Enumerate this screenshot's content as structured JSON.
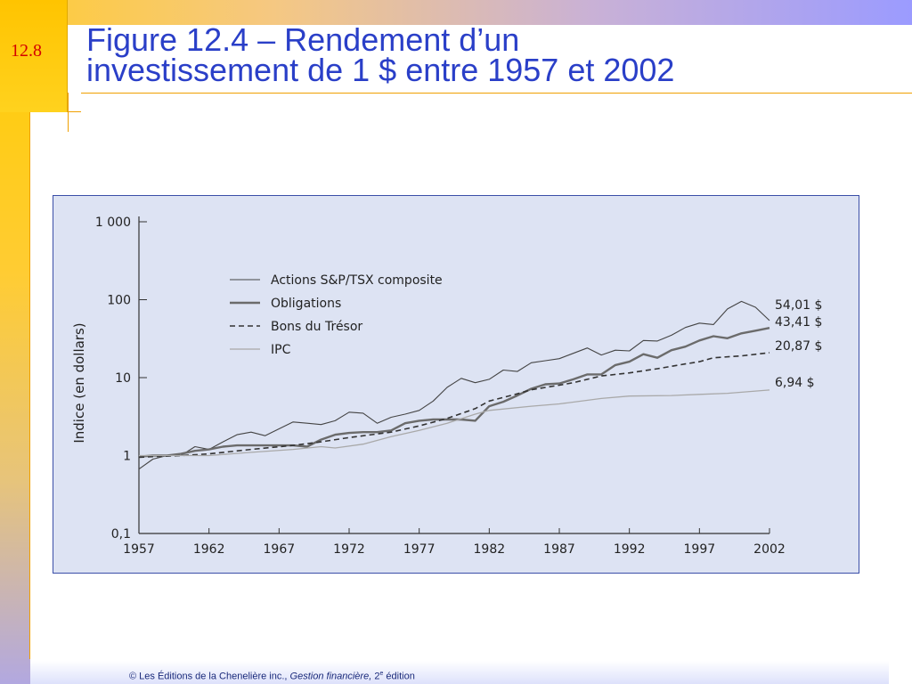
{
  "slide": {
    "number": "12.8",
    "title_line1": "Figure 12.4 – Rendement d’un",
    "title_line2": "investissement de 1 $ entre 1957 et 2002"
  },
  "footer": {
    "prefix": "© Les Éditions de la Chenelière inc., ",
    "book": "Gestion financière,",
    "edition_num": " 2",
    "edition_sup": "e",
    "edition_word": " édition"
  },
  "colors": {
    "title": "#2a3fc8",
    "slide_number": "#d40000",
    "chart_background": "#dde3f3",
    "frame": "#3a4ea8",
    "stocks": "#444444",
    "bonds": "#6b6b6b",
    "tbills": "#333333",
    "cpi": "#a9a9a9"
  },
  "chart_data": {
    "type": "line",
    "title": "",
    "xlabel": "",
    "ylabel": "Indice (en dollars)",
    "yscale": "log",
    "ylim": [
      0.1,
      1000
    ],
    "xlim": [
      1957,
      2002
    ],
    "grid": false,
    "legend_position": "top-left",
    "x_ticks": [
      "1957",
      "1962",
      "1967",
      "1972",
      "1977",
      "1982",
      "1987",
      "1992",
      "1997",
      "2002"
    ],
    "y_ticks": [
      {
        "value": 0.1,
        "label": "0,1"
      },
      {
        "value": 1,
        "label": "1"
      },
      {
        "value": 10,
        "label": "10"
      },
      {
        "value": 100,
        "label": "100"
      },
      {
        "value": 1000,
        "label": "1 000"
      }
    ],
    "series": [
      {
        "name": "Actions S&P/TSX composite",
        "style": "thin",
        "end_label": "54,01 $",
        "points": [
          [
            1957,
            0.67
          ],
          [
            1958,
            0.9
          ],
          [
            1959,
            1.0
          ],
          [
            1960,
            1.0
          ],
          [
            1961,
            1.3
          ],
          [
            1962,
            1.2
          ],
          [
            1963,
            1.5
          ],
          [
            1964,
            1.85
          ],
          [
            1965,
            2.0
          ],
          [
            1966,
            1.8
          ],
          [
            1967,
            2.2
          ],
          [
            1968,
            2.7
          ],
          [
            1969,
            2.6
          ],
          [
            1970,
            2.5
          ],
          [
            1971,
            2.8
          ],
          [
            1972,
            3.6
          ],
          [
            1973,
            3.5
          ],
          [
            1974,
            2.6
          ],
          [
            1975,
            3.1
          ],
          [
            1976,
            3.4
          ],
          [
            1977,
            3.8
          ],
          [
            1978,
            5.0
          ],
          [
            1979,
            7.5
          ],
          [
            1980,
            9.8
          ],
          [
            1981,
            8.6
          ],
          [
            1982,
            9.5
          ],
          [
            1983,
            12.5
          ],
          [
            1984,
            12.0
          ],
          [
            1985,
            15.5
          ],
          [
            1986,
            16.5
          ],
          [
            1987,
            17.5
          ],
          [
            1988,
            20.5
          ],
          [
            1989,
            24.0
          ],
          [
            1990,
            19.5
          ],
          [
            1991,
            22.5
          ],
          [
            1992,
            22.0
          ],
          [
            1993,
            30.0
          ],
          [
            1994,
            29.5
          ],
          [
            1995,
            35.0
          ],
          [
            1996,
            44.0
          ],
          [
            1997,
            50.0
          ],
          [
            1998,
            48.0
          ],
          [
            1999,
            76.0
          ],
          [
            2000,
            95.0
          ],
          [
            2001,
            80.0
          ],
          [
            2002,
            54.01
          ]
        ]
      },
      {
        "name": "Obligations",
        "style": "thick",
        "end_label": "43,41 $",
        "points": [
          [
            1957,
            0.97
          ],
          [
            1958,
            1.0
          ],
          [
            1959,
            1.0
          ],
          [
            1960,
            1.05
          ],
          [
            1961,
            1.15
          ],
          [
            1962,
            1.2
          ],
          [
            1963,
            1.3
          ],
          [
            1964,
            1.35
          ],
          [
            1965,
            1.35
          ],
          [
            1966,
            1.35
          ],
          [
            1967,
            1.35
          ],
          [
            1968,
            1.35
          ],
          [
            1969,
            1.3
          ],
          [
            1970,
            1.6
          ],
          [
            1971,
            1.85
          ],
          [
            1972,
            1.95
          ],
          [
            1973,
            2.0
          ],
          [
            1974,
            2.0
          ],
          [
            1975,
            2.1
          ],
          [
            1976,
            2.6
          ],
          [
            1977,
            2.8
          ],
          [
            1978,
            2.9
          ],
          [
            1979,
            2.9
          ],
          [
            1980,
            2.9
          ],
          [
            1981,
            2.8
          ],
          [
            1982,
            4.3
          ],
          [
            1983,
            4.9
          ],
          [
            1984,
            5.9
          ],
          [
            1985,
            7.2
          ],
          [
            1986,
            8.2
          ],
          [
            1987,
            8.4
          ],
          [
            1988,
            9.5
          ],
          [
            1989,
            11.0
          ],
          [
            1990,
            11.0
          ],
          [
            1991,
            14.5
          ],
          [
            1992,
            16.0
          ],
          [
            1993,
            20.0
          ],
          [
            1994,
            18.0
          ],
          [
            1995,
            22.5
          ],
          [
            1996,
            25.0
          ],
          [
            1997,
            30.0
          ],
          [
            1998,
            34.0
          ],
          [
            1999,
            32.0
          ],
          [
            2000,
            37.0
          ],
          [
            2001,
            40.0
          ],
          [
            2002,
            43.41
          ]
        ]
      },
      {
        "name": "Bons du Trésor",
        "style": "dashed",
        "end_label": "20,87 $",
        "points": [
          [
            1957,
            0.95
          ],
          [
            1960,
            1.0
          ],
          [
            1962,
            1.05
          ],
          [
            1965,
            1.2
          ],
          [
            1968,
            1.35
          ],
          [
            1970,
            1.5
          ],
          [
            1972,
            1.7
          ],
          [
            1975,
            2.0
          ],
          [
            1977,
            2.4
          ],
          [
            1979,
            3.0
          ],
          [
            1981,
            4.0
          ],
          [
            1982,
            5.0
          ],
          [
            1984,
            6.2
          ],
          [
            1985,
            7.0
          ],
          [
            1987,
            8.0
          ],
          [
            1988,
            8.6
          ],
          [
            1990,
            10.5
          ],
          [
            1992,
            11.5
          ],
          [
            1994,
            13.0
          ],
          [
            1996,
            15.0
          ],
          [
            1997,
            16.0
          ],
          [
            1998,
            18.0
          ],
          [
            2000,
            19.0
          ],
          [
            2002,
            20.87
          ]
        ]
      },
      {
        "name": "IPC",
        "style": "light",
        "end_label": "6,94 $",
        "points": [
          [
            1957,
            1.0
          ],
          [
            1960,
            1.0
          ],
          [
            1962,
            1.0
          ],
          [
            1965,
            1.1
          ],
          [
            1968,
            1.2
          ],
          [
            1970,
            1.3
          ],
          [
            1971,
            1.25
          ],
          [
            1973,
            1.4
          ],
          [
            1975,
            1.75
          ],
          [
            1977,
            2.1
          ],
          [
            1979,
            2.6
          ],
          [
            1981,
            3.4
          ],
          [
            1982,
            3.8
          ],
          [
            1985,
            4.3
          ],
          [
            1987,
            4.6
          ],
          [
            1990,
            5.4
          ],
          [
            1992,
            5.8
          ],
          [
            1995,
            5.9
          ],
          [
            1997,
            6.1
          ],
          [
            1999,
            6.3
          ],
          [
            2002,
            6.94
          ]
        ]
      }
    ]
  }
}
